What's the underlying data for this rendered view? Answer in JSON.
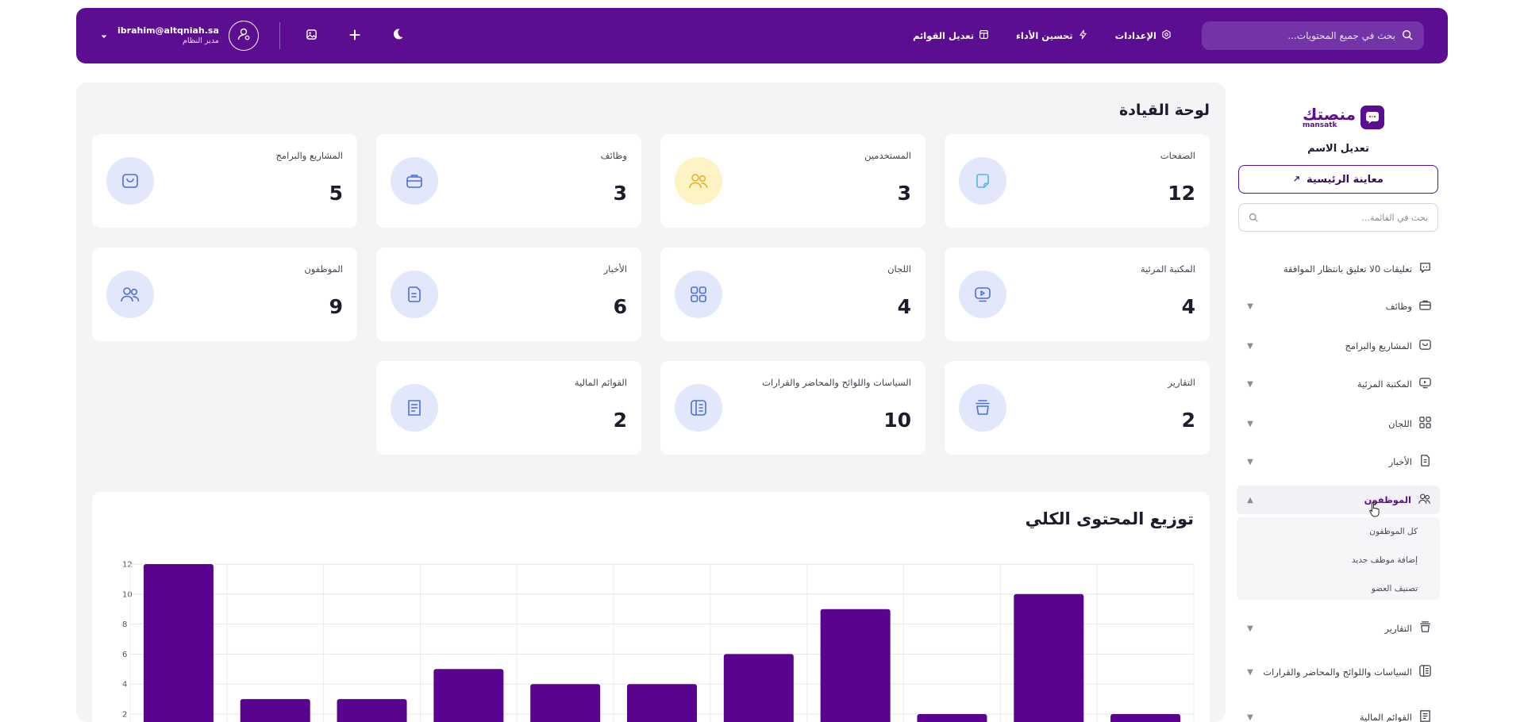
{
  "topbar": {
    "search_placeholder": "بحث في جميع المحتويات...",
    "nav": [
      {
        "label": "الإعدادات",
        "icon": "settings-icon"
      },
      {
        "label": "تحسين الأداء",
        "icon": "bolt-icon"
      },
      {
        "label": "تعديل القوائم",
        "icon": "menu-edit-icon"
      }
    ],
    "user": {
      "email": "ibrahim@altqniah.sa",
      "role": "مدير النظام"
    },
    "icons": [
      "moon-icon",
      "plus-icon",
      "gallery-icon",
      "user-icon"
    ]
  },
  "sidebar": {
    "logo_ar": "منصتك",
    "logo_en": "mansatk",
    "site_name": "تعديل الاسم",
    "preview_label": "معاينة الرئيسية",
    "search_placeholder": "بحث في القائمة...",
    "items": [
      {
        "label": "تعليقات 0لا تعليق بانتظار الموافقة",
        "icon": "comment-icon"
      },
      {
        "label": "وظائف",
        "icon": "briefcase-icon"
      },
      {
        "label": "المشاريع والبرامج",
        "icon": "projects-icon"
      },
      {
        "label": "المكتبة المرئية",
        "icon": "video-icon"
      },
      {
        "label": "اللجان",
        "icon": "grid-icon"
      },
      {
        "label": "الأخبار",
        "icon": "news-icon"
      },
      {
        "label": "الموظفون",
        "icon": "users-icon"
      },
      {
        "label": "التقارير",
        "icon": "reports-icon"
      },
      {
        "label": "السياسات واللوائح والمحاضر والقرارات",
        "icon": "policy-icon"
      },
      {
        "label": "القوائم المالية",
        "icon": "finance-icon"
      }
    ],
    "employees_sub": [
      "كل الموظفون",
      "إضافة موظف جديد",
      "تصنيف العضو"
    ]
  },
  "main": {
    "title": "لوحة القيادة",
    "cards": [
      {
        "title": "الصفحات",
        "value": "12",
        "icon": "pages-icon"
      },
      {
        "title": "المستخدمين",
        "value": "3",
        "icon": "users-icon"
      },
      {
        "title": "وظائف",
        "value": "3",
        "icon": "briefcase-icon"
      },
      {
        "title": "المشاريع والبرامج",
        "value": "5",
        "icon": "projects-icon"
      },
      {
        "title": "المكتبة المرئية",
        "value": "4",
        "icon": "video-icon"
      },
      {
        "title": "اللجان",
        "value": "4",
        "icon": "grid-icon"
      },
      {
        "title": "الأخبار",
        "value": "6",
        "icon": "news-icon"
      },
      {
        "title": "الموظفون",
        "value": "9",
        "icon": "users-icon"
      },
      {
        "title": "التقارير",
        "value": "2",
        "icon": "reports-icon"
      },
      {
        "title": "السياسات واللوائح والمحاضر والقرارات",
        "value": "10",
        "icon": "policy-icon"
      },
      {
        "title": "القوائم المالية",
        "value": "2",
        "icon": "finance-icon"
      }
    ],
    "chart_title": "توزيع المحتوى الكلي"
  },
  "colors": {
    "brand": "#5b0e91",
    "bar": "#5a0390",
    "icon_bg": "#e3e7fb",
    "icon_stroke": "#4a6fd8"
  },
  "chart_data": {
    "type": "bar",
    "title": "توزيع المحتوى الكلي",
    "values": [
      12,
      3,
      3,
      5,
      4,
      4,
      6,
      9,
      2,
      10,
      2
    ],
    "ylim": [
      0,
      12
    ],
    "yticks": [
      2,
      4,
      6,
      8,
      10,
      12
    ],
    "grid": true
  }
}
